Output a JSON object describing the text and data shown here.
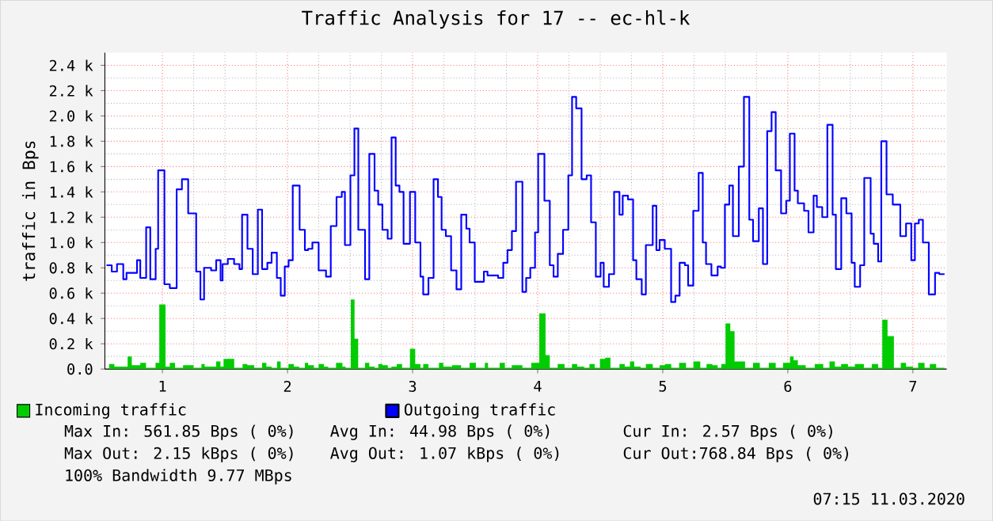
{
  "chart_data": {
    "type": "step",
    "title": "Traffic Analysis for 17 -- ec-hl-k",
    "ylabel": "traffic in Bps",
    "xlim": [
      0.54,
      7.27
    ],
    "xticks": [
      1,
      2,
      3,
      4,
      5,
      6,
      7
    ],
    "ylim": [
      0,
      2500
    ],
    "yticks": [
      {
        "value": 0,
        "label": "0.0"
      },
      {
        "value": 200,
        "label": "0.2 k"
      },
      {
        "value": 400,
        "label": "0.4 k"
      },
      {
        "value": 600,
        "label": "0.6 k"
      },
      {
        "value": 800,
        "label": "0.8 k"
      },
      {
        "value": 1000,
        "label": "1.0 k"
      },
      {
        "value": 1200,
        "label": "1.2 k"
      },
      {
        "value": 1400,
        "label": "1.4 k"
      },
      {
        "value": 1600,
        "label": "1.6 k"
      },
      {
        "value": 1800,
        "label": "1.8 k"
      },
      {
        "value": 2000,
        "label": "2.0 k"
      },
      {
        "value": 2200,
        "label": "2.2 k"
      },
      {
        "value": 2400,
        "label": "2.4 k"
      }
    ],
    "grid": true,
    "legend": "bottom left",
    "series": [
      {
        "name": "Incoming traffic",
        "type": "area",
        "color": "#00cc00",
        "x": [
          0.574,
          0.616,
          0.722,
          0.755,
          0.823,
          0.869,
          0.945,
          0.975,
          1.025,
          1.059,
          1.101,
          1.165,
          1.249,
          1.312,
          1.338,
          1.43,
          1.464,
          1.489,
          1.574,
          1.641,
          1.679,
          1.734,
          1.797,
          1.831,
          1.873,
          1.916,
          1.945,
          2.008,
          2.051,
          2.093,
          2.139,
          2.165,
          2.211,
          2.249,
          2.291,
          2.325,
          2.388,
          2.439,
          2.464,
          2.506,
          2.536,
          2.565,
          2.62,
          2.654,
          2.696,
          2.726,
          2.759,
          2.802,
          2.831,
          2.873,
          2.916,
          2.979,
          3.021,
          3.063,
          3.085,
          3.127,
          3.211,
          3.245,
          3.316,
          3.388,
          3.456,
          3.506,
          3.578,
          3.603,
          3.696,
          3.738,
          3.793,
          3.878,
          3.949,
          4.013,
          4.063,
          4.097,
          4.16,
          4.215,
          4.274,
          4.316,
          4.371,
          4.414,
          4.456,
          4.498,
          4.54,
          4.582,
          4.654,
          4.696,
          4.738,
          4.772,
          4.823,
          4.865,
          4.92,
          4.975,
          5.017,
          5.068,
          5.089,
          5.131,
          5.186,
          5.245,
          5.3,
          5.35,
          5.397,
          5.439,
          5.468,
          5.502,
          5.54,
          5.574,
          5.658,
          5.722,
          5.776,
          5.848,
          5.903,
          5.962,
          6.017,
          6.046,
          6.08,
          6.143,
          6.215,
          6.283,
          6.333,
          6.376,
          6.426,
          6.481,
          6.536,
          6.608,
          6.671,
          6.722,
          6.755,
          6.797,
          6.848,
          6.903,
          6.945,
          7.0,
          7.042,
          7.093,
          7.135,
          7.186,
          7.253
        ],
        "values": [
          40,
          20,
          100,
          30,
          50,
          10,
          50,
          510,
          20,
          50,
          10,
          30,
          10,
          40,
          20,
          60,
          20,
          80,
          10,
          40,
          30,
          10,
          50,
          20,
          10,
          60,
          10,
          40,
          20,
          10,
          50,
          30,
          10,
          40,
          20,
          10,
          50,
          20,
          10,
          550,
          240,
          10,
          50,
          20,
          10,
          40,
          30,
          10,
          20,
          40,
          10,
          160,
          40,
          10,
          40,
          10,
          50,
          20,
          30,
          10,
          50,
          10,
          50,
          10,
          50,
          10,
          30,
          10,
          50,
          440,
          110,
          10,
          40,
          10,
          40,
          20,
          10,
          40,
          10,
          80,
          90,
          10,
          40,
          20,
          60,
          20,
          10,
          40,
          10,
          30,
          40,
          10,
          10,
          50,
          10,
          60,
          10,
          40,
          30,
          10,
          40,
          360,
          300,
          60,
          10,
          50,
          10,
          50,
          10,
          50,
          100,
          70,
          30,
          10,
          40,
          10,
          60,
          20,
          40,
          20,
          40,
          10,
          40,
          10,
          390,
          260,
          10,
          50,
          20,
          10,
          50,
          10,
          40,
          10,
          10
        ]
      },
      {
        "name": "Outgoing traffic",
        "color": "#0000ff",
        "x": [
          0.553,
          0.595,
          0.637,
          0.687,
          0.713,
          0.797,
          0.823,
          0.87,
          0.903,
          0.946,
          0.966,
          1.016,
          1.059,
          1.114,
          1.156,
          1.206,
          1.27,
          1.304,
          1.333,
          1.389,
          1.43,
          1.465,
          1.481,
          1.523,
          1.573,
          1.616,
          1.637,
          1.68,
          1.722,
          1.763,
          1.797,
          1.839,
          1.873,
          1.915,
          1.946,
          1.978,
          2.009,
          2.042,
          2.097,
          2.139,
          2.165,
          2.199,
          2.249,
          2.308,
          2.346,
          2.392,
          2.434,
          2.459,
          2.503,
          2.535,
          2.566,
          2.62,
          2.654,
          2.696,
          2.725,
          2.759,
          2.801,
          2.832,
          2.865,
          2.895,
          2.928,
          2.979,
          3.021,
          3.063,
          3.085,
          3.127,
          3.168,
          3.203,
          3.232,
          3.266,
          3.308,
          3.351,
          3.389,
          3.43,
          3.456,
          3.497,
          3.57,
          3.599,
          3.684,
          3.725,
          3.759,
          3.794,
          3.827,
          3.878,
          3.908,
          3.941,
          3.979,
          4.004,
          4.054,
          4.097,
          4.127,
          4.161,
          4.203,
          4.245,
          4.275,
          4.308,
          4.351,
          4.392,
          4.427,
          4.465,
          4.503,
          4.528,
          4.57,
          4.611,
          4.654,
          4.68,
          4.722,
          4.763,
          4.789,
          4.832,
          4.865,
          4.92,
          4.949,
          4.975,
          5.016,
          5.067,
          5.101,
          5.135,
          5.177,
          5.203,
          5.244,
          5.287,
          5.32,
          5.346,
          5.389,
          5.439,
          5.465,
          5.497,
          5.532,
          5.561,
          5.608,
          5.649,
          5.692,
          5.722,
          5.768,
          5.801,
          5.835,
          5.87,
          5.903,
          5.946,
          5.987,
          6.016,
          6.054,
          6.08,
          6.13,
          6.165,
          6.206,
          6.232,
          6.275,
          6.316,
          6.358,
          6.384,
          6.427,
          6.468,
          6.51,
          6.535,
          6.578,
          6.611,
          6.662,
          6.687,
          6.722,
          6.747,
          6.789,
          6.839,
          6.899,
          6.945,
          6.987,
          7.016,
          7.047,
          7.08,
          7.127,
          7.177,
          7.211,
          7.253
        ],
        "values": [
          820,
          770,
          830,
          710,
          760,
          860,
          720,
          1120,
          710,
          950,
          1570,
          670,
          640,
          1420,
          1500,
          1230,
          770,
          550,
          800,
          780,
          860,
          700,
          830,
          870,
          830,
          790,
          1220,
          950,
          750,
          1260,
          790,
          840,
          920,
          720,
          580,
          810,
          860,
          1450,
          1100,
          940,
          950,
          1000,
          780,
          730,
          1130,
          1360,
          1400,
          980,
          1530,
          1900,
          1100,
          710,
          1700,
          1410,
          1300,
          1100,
          1030,
          1830,
          1450,
          1400,
          990,
          1400,
          1000,
          730,
          590,
          720,
          1500,
          1360,
          1100,
          1050,
          780,
          630,
          1220,
          1110,
          1000,
          690,
          770,
          740,
          720,
          840,
          940,
          1090,
          1480,
          610,
          720,
          800,
          1080,
          1700,
          1330,
          820,
          730,
          910,
          1100,
          1530,
          2150,
          2060,
          1500,
          1530,
          1160,
          730,
          840,
          650,
          750,
          1400,
          1220,
          1370,
          1340,
          860,
          710,
          590,
          980,
          1290,
          940,
          1020,
          950,
          530,
          580,
          840,
          820,
          660,
          1250,
          1550,
          1000,
          830,
          740,
          810,
          800,
          1300,
          1450,
          1050,
          1600,
          2150,
          1180,
          1010,
          1270,
          830,
          1880,
          2030,
          1570,
          1230,
          1330,
          1860,
          1410,
          1310,
          1250,
          1080,
          1370,
          1280,
          1200,
          1930,
          1220,
          790,
          1350,
          1230,
          840,
          650,
          820,
          1510,
          1070,
          990,
          850,
          1800,
          1380,
          1300,
          1050,
          1150,
          860,
          1150,
          1180,
          1000,
          590,
          760,
          750,
          750
        ]
      }
    ],
    "annotations": [
      "Max In: 561.85 Bps ( 0%)",
      "Avg In: 44.98 Bps ( 0%)",
      "Cur In: 2.57 Bps ( 0%)",
      "Max Out: 2.15 kBps ( 0%)",
      "Avg Out: 1.07 kBps ( 0%)",
      "Cur Out:768.84 Bps ( 0%)",
      "100% Bandwidth 9.77 MBps",
      "07:15 11.03.2020"
    ]
  }
}
